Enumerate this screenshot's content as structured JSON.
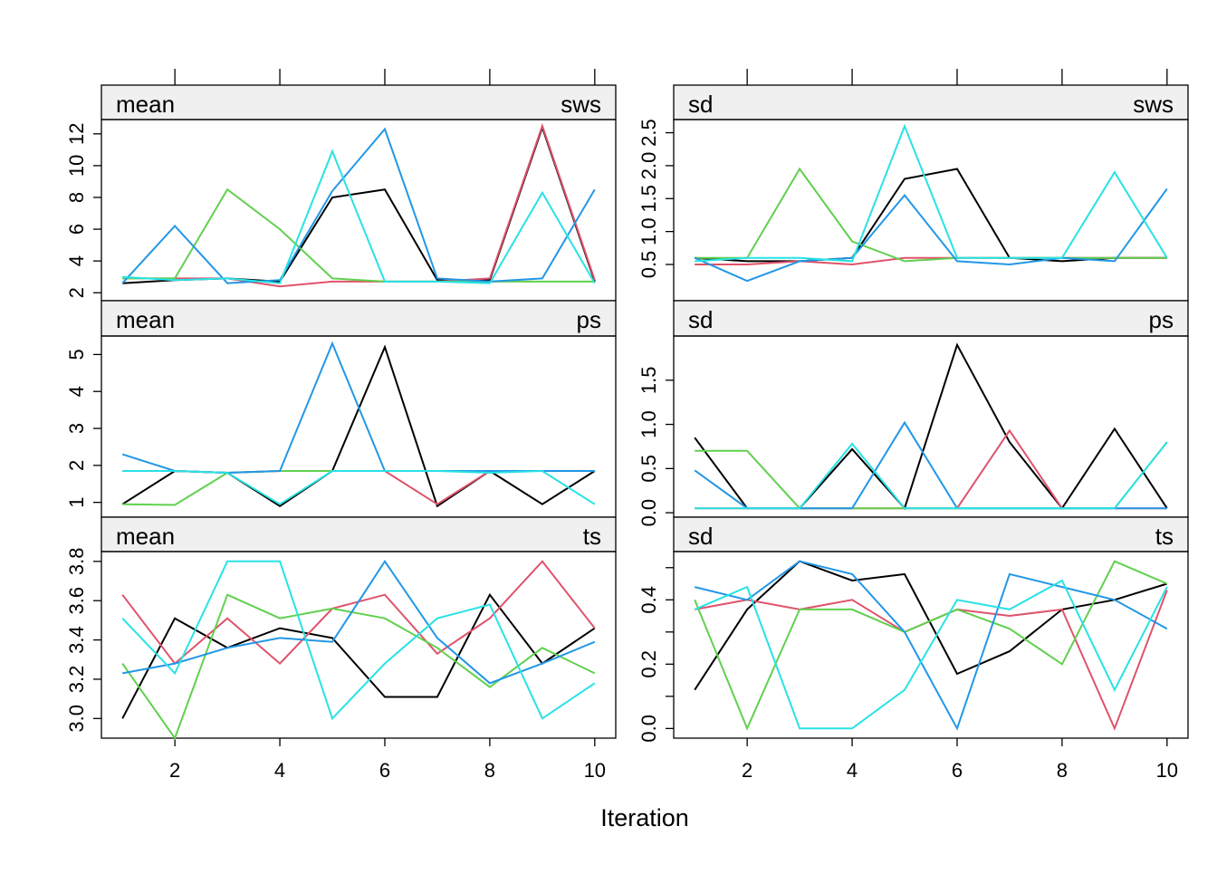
{
  "colors": {
    "chain_1": "#000000",
    "chain_2": "#DF536B",
    "chain_3": "#61D04F",
    "chain_4": "#2297E6",
    "chain_5": "#28E2E5",
    "strip_background": "#F0F0F0"
  },
  "xlabel": "Iteration",
  "chart_data": [
    {
      "type": "line",
      "strip_left": "mean",
      "strip_right": "sws",
      "x": [
        1,
        2,
        3,
        4,
        5,
        6,
        7,
        8,
        9,
        10
      ],
      "ylim": [
        1.5,
        12.9
      ],
      "yticks": [
        2,
        4,
        6,
        8,
        10,
        12
      ],
      "yticklabels": [
        "2",
        "4",
        "6",
        "8",
        "10",
        "12"
      ],
      "xticks": [
        2,
        4,
        6,
        8,
        10
      ],
      "xticklabels": [
        "2",
        "4",
        "6",
        "8",
        "10"
      ],
      "series": [
        {
          "values": [
            2.6,
            2.8,
            2.9,
            2.7,
            8.0,
            8.5,
            2.8,
            2.8,
            12.4,
            2.7
          ]
        },
        {
          "values": [
            2.9,
            2.9,
            2.9,
            2.4,
            2.7,
            2.7,
            2.7,
            2.9,
            12.5,
            2.8
          ]
        },
        {
          "values": [
            2.9,
            2.9,
            8.5,
            6.0,
            2.9,
            2.7,
            2.7,
            2.7,
            2.7,
            2.7
          ]
        },
        {
          "values": [
            2.6,
            6.2,
            2.6,
            2.8,
            8.4,
            12.3,
            2.9,
            2.7,
            2.9,
            8.5
          ]
        },
        {
          "values": [
            3.0,
            2.8,
            2.9,
            2.6,
            10.9,
            2.7,
            2.7,
            2.6,
            8.3,
            2.6
          ]
        }
      ]
    },
    {
      "type": "line",
      "strip_left": "sd",
      "strip_right": "sws",
      "x": [
        1,
        2,
        3,
        4,
        5,
        6,
        7,
        8,
        9,
        10
      ],
      "ylim": [
        -0.05,
        2.7
      ],
      "yticks": [
        0.5,
        1.0,
        1.5,
        2.0,
        2.5
      ],
      "yticklabels": [
        "0.5",
        "1.0",
        "1.5",
        "2.0",
        "2.5"
      ],
      "xticks": [
        2,
        4,
        6,
        8,
        10
      ],
      "xticklabels": [
        "2",
        "4",
        "6",
        "8",
        "10"
      ],
      "series": [
        {
          "values": [
            0.6,
            0.55,
            0.55,
            0.6,
            1.8,
            1.95,
            0.6,
            0.55,
            0.6,
            0.6
          ]
        },
        {
          "values": [
            0.5,
            0.5,
            0.55,
            0.5,
            0.6,
            0.6,
            0.6,
            0.6,
            0.6,
            0.6
          ]
        },
        {
          "values": [
            0.6,
            0.6,
            1.95,
            0.85,
            0.55,
            0.6,
            0.6,
            0.6,
            0.6,
            0.6
          ]
        },
        {
          "values": [
            0.6,
            0.25,
            0.55,
            0.6,
            1.55,
            0.55,
            0.5,
            0.6,
            0.55,
            1.65
          ]
        },
        {
          "values": [
            0.55,
            0.6,
            0.6,
            0.55,
            2.6,
            0.6,
            0.6,
            0.6,
            1.9,
            0.6
          ]
        }
      ]
    },
    {
      "type": "line",
      "strip_left": "mean",
      "strip_right": "ps",
      "x": [
        1,
        2,
        3,
        4,
        5,
        6,
        7,
        8,
        9,
        10
      ],
      "ylim": [
        0.6,
        5.5
      ],
      "yticks": [
        1,
        2,
        3,
        4,
        5
      ],
      "yticklabels": [
        "1",
        "2",
        "3",
        "4",
        "5"
      ],
      "xticks": [
        2,
        4,
        6,
        8,
        10
      ],
      "xticklabels": [
        "2",
        "4",
        "6",
        "8",
        "10"
      ],
      "series": [
        {
          "values": [
            0.95,
            1.85,
            1.8,
            0.9,
            1.85,
            5.2,
            0.9,
            1.85,
            0.95,
            1.85
          ]
        },
        {
          "values": [
            1.85,
            1.85,
            1.8,
            1.85,
            1.85,
            1.85,
            0.95,
            1.85,
            1.85,
            1.85
          ]
        },
        {
          "values": [
            0.95,
            0.93,
            1.8,
            1.85,
            1.85,
            1.85,
            1.85,
            1.85,
            1.85,
            1.85
          ]
        },
        {
          "values": [
            2.3,
            1.85,
            1.8,
            1.85,
            5.3,
            1.85,
            1.85,
            1.85,
            1.85,
            1.85
          ]
        },
        {
          "values": [
            1.85,
            1.85,
            1.8,
            0.95,
            1.85,
            1.85,
            1.85,
            1.8,
            1.85,
            0.95
          ]
        }
      ]
    },
    {
      "type": "line",
      "strip_left": "sd",
      "strip_right": "ps",
      "x": [
        1,
        2,
        3,
        4,
        5,
        6,
        7,
        8,
        9,
        10
      ],
      "ylim": [
        -0.05,
        2.0
      ],
      "yticks": [
        0.0,
        0.5,
        1.0,
        1.5
      ],
      "yticklabels": [
        "0.0",
        "0.5",
        "1.0",
        "1.5"
      ],
      "xticks": [
        2,
        4,
        6,
        8,
        10
      ],
      "xticklabels": [
        "2",
        "4",
        "6",
        "8",
        "10"
      ],
      "series": [
        {
          "values": [
            0.85,
            0.05,
            0.05,
            0.72,
            0.05,
            1.9,
            0.8,
            0.05,
            0.95,
            0.05
          ]
        },
        {
          "values": [
            0.05,
            0.05,
            0.05,
            0.05,
            0.05,
            0.05,
            0.93,
            0.05,
            0.05,
            0.05
          ]
        },
        {
          "values": [
            0.7,
            0.7,
            0.05,
            0.05,
            0.05,
            0.05,
            0.05,
            0.05,
            0.05,
            0.8
          ]
        },
        {
          "values": [
            0.48,
            0.05,
            0.05,
            0.05,
            1.02,
            0.05,
            0.05,
            0.05,
            0.05,
            0.05
          ]
        },
        {
          "values": [
            0.05,
            0.05,
            0.05,
            0.78,
            0.05,
            0.05,
            0.05,
            0.05,
            0.05,
            0.8
          ]
        }
      ]
    },
    {
      "type": "line",
      "strip_left": "mean",
      "strip_right": "ts",
      "x": [
        1,
        2,
        3,
        4,
        5,
        6,
        7,
        8,
        9,
        10
      ],
      "ylim": [
        2.9,
        3.85
      ],
      "yticks": [
        3.0,
        3.2,
        3.4,
        3.6,
        3.8
      ],
      "yticklabels": [
        "3.0",
        "3.2",
        "3.4",
        "3.6",
        "3.8"
      ],
      "xticks": [
        2,
        4,
        6,
        8,
        10
      ],
      "xticklabels": [
        "2",
        "4",
        "6",
        "8",
        "10"
      ],
      "series": [
        {
          "values": [
            3.0,
            3.51,
            3.36,
            3.46,
            3.41,
            3.11,
            3.11,
            3.63,
            3.28,
            3.46
          ]
        },
        {
          "values": [
            3.63,
            3.28,
            3.51,
            3.28,
            3.56,
            3.63,
            3.33,
            3.51,
            3.8,
            3.46
          ]
        },
        {
          "values": [
            3.28,
            2.9,
            3.63,
            3.51,
            3.56,
            3.51,
            3.36,
            3.16,
            3.36,
            3.23
          ]
        },
        {
          "values": [
            3.23,
            3.28,
            3.36,
            3.41,
            3.39,
            3.8,
            3.41,
            3.18,
            3.28,
            3.39
          ]
        },
        {
          "values": [
            3.51,
            3.23,
            3.8,
            3.8,
            3.0,
            3.28,
            3.51,
            3.58,
            3.0,
            3.18
          ]
        }
      ]
    },
    {
      "type": "line",
      "strip_left": "sd",
      "strip_right": "ts",
      "x": [
        1,
        2,
        3,
        4,
        5,
        6,
        7,
        8,
        9,
        10
      ],
      "ylim": [
        -0.03,
        0.55
      ],
      "yticks": [
        0.0,
        0.1,
        0.2,
        0.3,
        0.4,
        0.5
      ],
      "yticklabels": [
        "0.0",
        "",
        "0.2",
        "",
        "0.4",
        ""
      ],
      "xticks": [
        2,
        4,
        6,
        8,
        10
      ],
      "xticklabels": [
        "2",
        "4",
        "6",
        "8",
        "10"
      ],
      "series": [
        {
          "values": [
            0.12,
            0.37,
            0.52,
            0.46,
            0.48,
            0.17,
            0.24,
            0.37,
            0.4,
            0.45
          ]
        },
        {
          "values": [
            0.37,
            0.4,
            0.37,
            0.4,
            0.3,
            0.37,
            0.35,
            0.37,
            0.0,
            0.43
          ]
        },
        {
          "values": [
            0.4,
            0.0,
            0.37,
            0.37,
            0.3,
            0.37,
            0.31,
            0.2,
            0.52,
            0.45
          ]
        },
        {
          "values": [
            0.44,
            0.4,
            0.52,
            0.48,
            0.3,
            0.0,
            0.48,
            0.44,
            0.4,
            0.31
          ]
        },
        {
          "values": [
            0.37,
            0.44,
            0.0,
            0.0,
            0.12,
            0.4,
            0.37,
            0.46,
            0.12,
            0.44
          ]
        }
      ]
    }
  ]
}
